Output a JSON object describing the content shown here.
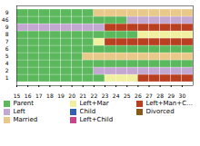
{
  "chart_data": {
    "type": "sequence",
    "orientation": "horizontal",
    "categories": [
      "1",
      "2",
      "4",
      "5",
      "6",
      "7",
      "8",
      "9",
      "46",
      "9"
    ],
    "x": [
      15,
      16,
      17,
      18,
      19,
      20,
      21,
      22,
      23,
      24,
      25,
      26,
      27,
      28,
      29,
      30
    ],
    "xlim": [
      15,
      31
    ],
    "xticks": [
      15,
      16,
      17,
      18,
      19,
      20,
      21,
      22,
      23,
      24,
      25,
      26,
      27,
      28,
      29,
      30
    ],
    "grid": false,
    "legend": "bottom",
    "series": [
      {
        "name": "Parent",
        "color": "#5cb85c"
      },
      {
        "name": "Left",
        "color": "#c3a8d1"
      },
      {
        "name": "Married",
        "color": "#e8c98a"
      },
      {
        "name": "Left+Mar",
        "color": "#f0f0a0"
      },
      {
        "name": "Child",
        "color": "#3060b0"
      },
      {
        "name": "Left+Child",
        "color": "#cc4488"
      },
      {
        "name": "Left+Man+Child",
        "color": "#b84020"
      },
      {
        "name": "Divorced",
        "color": "#8b5a1a"
      }
    ],
    "cells": [
      [
        "Parent",
        "Parent",
        "Parent",
        "Parent",
        "Parent",
        "Parent",
        "Parent",
        "Parent",
        "Left+Mar",
        "Left+Mar",
        "Left+Mar",
        "Left+Man+Child",
        "Left+Man+Child",
        "Left+Man+Child",
        "Left+Man+Child",
        "Left+Man+Child"
      ],
      [
        "Parent",
        "Parent",
        "Parent",
        "Parent",
        "Parent",
        "Parent",
        "Parent",
        "Left",
        "Left",
        "Left",
        "Left",
        "Left",
        "Left",
        "Left",
        "Left",
        "Left"
      ],
      [
        "Parent",
        "Parent",
        "Parent",
        "Parent",
        "Parent",
        "Parent",
        "Parent",
        "Parent",
        "Parent",
        "Parent",
        "Parent",
        "Parent",
        "Parent",
        "Parent",
        "Parent",
        "Parent"
      ],
      [
        "Parent",
        "Parent",
        "Parent",
        "Parent",
        "Parent",
        "Parent",
        "Married",
        "Married",
        "Married",
        "Married",
        "Married",
        "Married",
        "Married",
        "Married",
        "Married",
        "Married"
      ],
      [
        "Parent",
        "Parent",
        "Parent",
        "Parent",
        "Parent",
        "Parent",
        "Parent",
        "Parent",
        "Parent",
        "Parent",
        "Parent",
        "Parent",
        "Parent",
        "Parent",
        "Parent",
        "Parent"
      ],
      [
        "Parent",
        "Parent",
        "Parent",
        "Parent",
        "Parent",
        "Parent",
        "Parent",
        "Left+Mar",
        "Left+Man+Child",
        "Left+Man+Child",
        "Left+Man+Child",
        "Left+Man+Child",
        "Left+Man+Child",
        "Left+Man+Child",
        "Left+Man+Child",
        "Left+Man+Child"
      ],
      [
        "Parent",
        "Parent",
        "Parent",
        "Parent",
        "Parent",
        "Parent",
        "Parent",
        "Parent",
        "Parent",
        "Parent",
        "Parent",
        "Left+Mar",
        "Left+Mar",
        "Left+Mar",
        "Left+Mar",
        "Left+Mar"
      ],
      [
        "Left",
        "Left",
        "Left",
        "Left",
        "Left",
        "Left",
        "Left",
        "Left",
        "Left+Man+Child",
        "Left+Man+Child",
        "Left+Man+Child",
        "Left+Man+Child",
        "Left+Man+Child",
        "Left+Man+Child",
        "Left+Man+Child",
        "Left+Man+Child"
      ],
      [
        "Parent",
        "Parent",
        "Parent",
        "Parent",
        "Parent",
        "Parent",
        "Parent",
        "Parent",
        "Parent",
        "Parent",
        "Left",
        "Left",
        "Left",
        "Left",
        "Left",
        "Left"
      ],
      [
        "Parent",
        "Parent",
        "Parent",
        "Parent",
        "Parent",
        "Parent",
        "Parent",
        "Married",
        "Married",
        "Married",
        "Married",
        "Married",
        "Married",
        "Married",
        "Married",
        "Married"
      ]
    ]
  }
}
